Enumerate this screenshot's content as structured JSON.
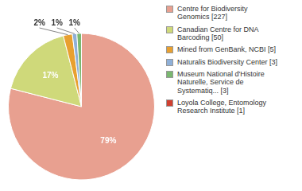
{
  "chart_data": {
    "type": "pie",
    "categories": [
      "Centre for Biodiversity\nGenomics [227]",
      "Canadian Centre for DNA\nBarcoding [50]",
      "Mined from GenBank, NCBI [5]",
      "Naturalis Biodiversity Center [3]",
      "Museum National d'Histoire\nNaturelle, Service de\nSystematiq... [3]",
      "Loyola College, Entomology\nResearch Institute [1]"
    ],
    "values": [
      79,
      17,
      2,
      1,
      1,
      0
    ],
    "value_labels": [
      "79%",
      "17%",
      "2%",
      "1%",
      "1%",
      null
    ],
    "colors": [
      "#e8a090",
      "#cfd97a",
      "#e8a030",
      "#8fb0d8",
      "#7ab870",
      "#d04030"
    ],
    "data_labels": true,
    "legend": "right"
  }
}
